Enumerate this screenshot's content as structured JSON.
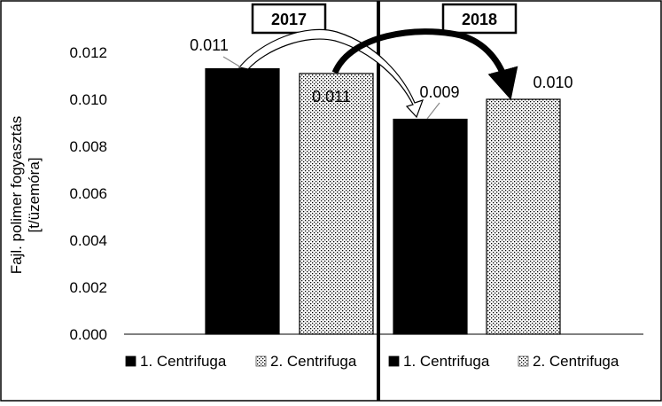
{
  "chart_data": {
    "type": "bar",
    "title": "",
    "xlabel": "",
    "ylabel": "Fajl. polimer fogyasztás [t/üzemóra]",
    "ylabel_lines": [
      "Fajl. polimer fogyasztás",
      "[t/üzemóra]"
    ],
    "ylim": [
      0,
      0.012
    ],
    "yticks": [
      "0.000",
      "0.002",
      "0.004",
      "0.006",
      "0.008",
      "0.010",
      "0.012"
    ],
    "grid": false,
    "legend_position": "bottom",
    "groups": [
      {
        "label": "2017",
        "bars": [
          {
            "series": "1. Centrifuga",
            "value": 0.0113,
            "label": "0.011",
            "pattern": "solid"
          },
          {
            "series": "2. Centrifuga",
            "value": 0.0111,
            "label": "0.011",
            "pattern": "dotted"
          }
        ]
      },
      {
        "label": "2018",
        "bars": [
          {
            "series": "1. Centrifuga",
            "value": 0.00915,
            "label": "0.009",
            "pattern": "solid"
          },
          {
            "series": "2. Centrifuga",
            "value": 0.01,
            "label": "0.010",
            "pattern": "dotted"
          }
        ]
      }
    ],
    "legend": [
      {
        "label": "1. Centrifuga",
        "pattern": "solid"
      },
      {
        "label": "2. Centrifuga",
        "pattern": "dotted"
      },
      {
        "label": "1. Centrifuga",
        "pattern": "solid"
      },
      {
        "label": "2. Centrifuga",
        "pattern": "dotted"
      }
    ],
    "annotations": [
      "hollow arrow from 2017 1. Centrifuga to 2018 1. Centrifuga",
      "solid arrow from 2017 2. Centrifuga to 2018 2. Centrifuga"
    ],
    "colors": {
      "solid": "#000000",
      "dotted_fill": "#ffffff",
      "dotted_dot": "#000000",
      "frame": "#000000"
    }
  }
}
